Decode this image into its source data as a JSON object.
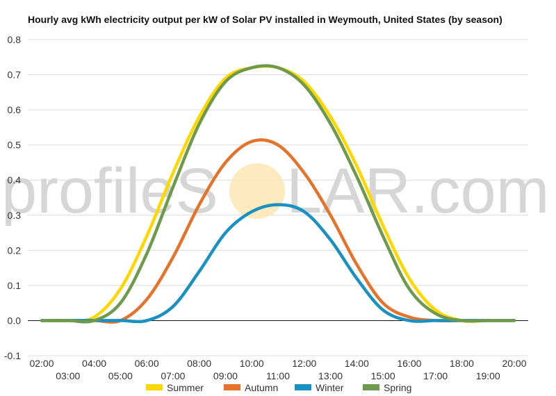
{
  "chart_data": {
    "type": "line",
    "title": "Hourly avg kWh electricity output per kW of Solar PV installed in Weymouth, United States (by season)",
    "xlabel": "",
    "ylabel": "",
    "ylim": [
      -0.1,
      0.8
    ],
    "yticks": [
      "-0.1",
      "0.0",
      "0.1",
      "0.2",
      "0.3",
      "0.4",
      "0.5",
      "0.6",
      "0.7",
      "0.8"
    ],
    "x": [
      "02:00",
      "03:00",
      "04:00",
      "05:00",
      "06:00",
      "07:00",
      "08:00",
      "09:00",
      "10:00",
      "11:00",
      "12:00",
      "13:00",
      "14:00",
      "15:00",
      "16:00",
      "17:00",
      "18:00",
      "19:00",
      "20:00"
    ],
    "grid": true,
    "legend_position": "bottom",
    "series": [
      {
        "name": "Summer",
        "color": "#ffd700",
        "values": [
          0,
          0,
          0.01,
          0.09,
          0.24,
          0.42,
          0.58,
          0.69,
          0.72,
          0.72,
          0.68,
          0.58,
          0.44,
          0.27,
          0.12,
          0.03,
          0.0,
          0,
          0
        ]
      },
      {
        "name": "Autumn",
        "color": "#e5732b",
        "values": [
          0,
          0,
          0,
          0,
          0.06,
          0.18,
          0.33,
          0.45,
          0.51,
          0.5,
          0.42,
          0.3,
          0.16,
          0.05,
          0.01,
          0,
          0,
          0,
          0
        ]
      },
      {
        "name": "Winter",
        "color": "#1a92c1",
        "values": [
          0,
          0,
          0,
          0,
          0,
          0.04,
          0.14,
          0.25,
          0.31,
          0.33,
          0.31,
          0.23,
          0.12,
          0.03,
          0,
          0,
          0,
          0,
          0
        ]
      },
      {
        "name": "Spring",
        "color": "#6e9a4e",
        "values": [
          0,
          0,
          0,
          0.05,
          0.19,
          0.38,
          0.56,
          0.68,
          0.72,
          0.72,
          0.67,
          0.56,
          0.41,
          0.24,
          0.09,
          0.02,
          0,
          0,
          0
        ]
      }
    ]
  },
  "watermark": {
    "left": "profileS",
    "right": "LAR.com"
  }
}
